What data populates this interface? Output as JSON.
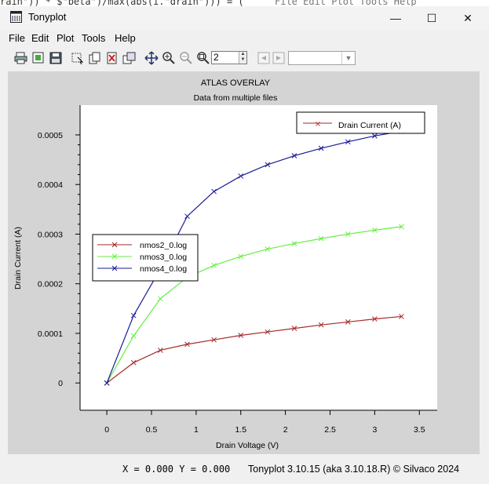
{
  "background_code": "rain\")) * $\"beta\")/max(abs(i.\"drain\"))) = (",
  "background_menu_hint": "File Edit Plot Tools Help",
  "window": {
    "title": "Tonyplot",
    "minimize_glyph": "—",
    "maximize_glyph": "☐",
    "close_glyph": "✕"
  },
  "menu": [
    "File",
    "Edit",
    "Plot",
    "Tools",
    "Help"
  ],
  "toolbar": {
    "zoom_value": "2",
    "combo_value": "",
    "icons": [
      "print-icon",
      "export-icon",
      "save-icon",
      "select-icon",
      "copy-icon",
      "delete-icon",
      "duplicate-icon",
      "pan-icon",
      "zoom-in-icon",
      "zoom-out-icon",
      "zoom-fit-icon",
      "undo-icon",
      "redo-icon"
    ]
  },
  "chart_data": {
    "type": "line",
    "title": "ATLAS OVERLAY",
    "subtitle": "Data from multiple files",
    "xlabel": "Drain Voltage (V)",
    "ylabel": "Drain Current (A)",
    "xlim": [
      -0.3,
      3.7
    ],
    "ylim": [
      -5.5e-05,
      0.00056
    ],
    "xticks": [
      0,
      0.5,
      1,
      1.5,
      2,
      2.5,
      3,
      3.5
    ],
    "xtick_labels": [
      "0",
      "0.5",
      "1",
      "1.5",
      "2",
      "2.5",
      "3",
      "3.5"
    ],
    "yticks": [
      0,
      0.0001,
      0.0002,
      0.0003,
      0.0004,
      0.0005
    ],
    "ytick_labels": [
      "0",
      "0.0001",
      "0.0002",
      "0.0003",
      "0.0004",
      "0.0005"
    ],
    "x": [
      0,
      0.3,
      0.6,
      0.9,
      1.2,
      1.5,
      1.8,
      2.1,
      2.4,
      2.7,
      3.0,
      3.3
    ],
    "series": [
      {
        "name": "nmos2_0.log",
        "color": "#a52a2a",
        "values": [
          0,
          4.1e-05,
          6.6e-05,
          7.8e-05,
          8.7e-05,
          9.6e-05,
          0.000103,
          0.00011,
          0.000117,
          0.000123,
          0.000129,
          0.000134
        ]
      },
      {
        "name": "nmos3_0.log",
        "color": "#66ee44",
        "values": [
          0,
          9.5e-05,
          0.00017,
          0.000213,
          0.000237,
          0.000255,
          0.00027,
          0.000281,
          0.000291,
          0.0003,
          0.000308,
          0.000315
        ]
      },
      {
        "name": "nmos4_0.log",
        "color": "#1a1a99",
        "values": [
          0,
          0.000136,
          0.00023,
          0.000336,
          0.000386,
          0.000417,
          0.00044,
          0.000458,
          0.000473,
          0.000486,
          0.000498,
          0.000507
        ]
      }
    ],
    "legend_files": {
      "placement": "center-left",
      "entries": [
        "nmos2_0.log",
        "nmos3_0.log",
        "nmos4_0.log"
      ]
    },
    "legend_quantity": {
      "placement": "top-right",
      "label": "Drain Current (A)",
      "color": "#a52a2a"
    },
    "grid": false
  },
  "status": {
    "coords": "X = 0.000 Y = 0.000",
    "version": "Tonyplot 3.10.15 (aka 3.10.18.R) © Silvaco 2024"
  }
}
